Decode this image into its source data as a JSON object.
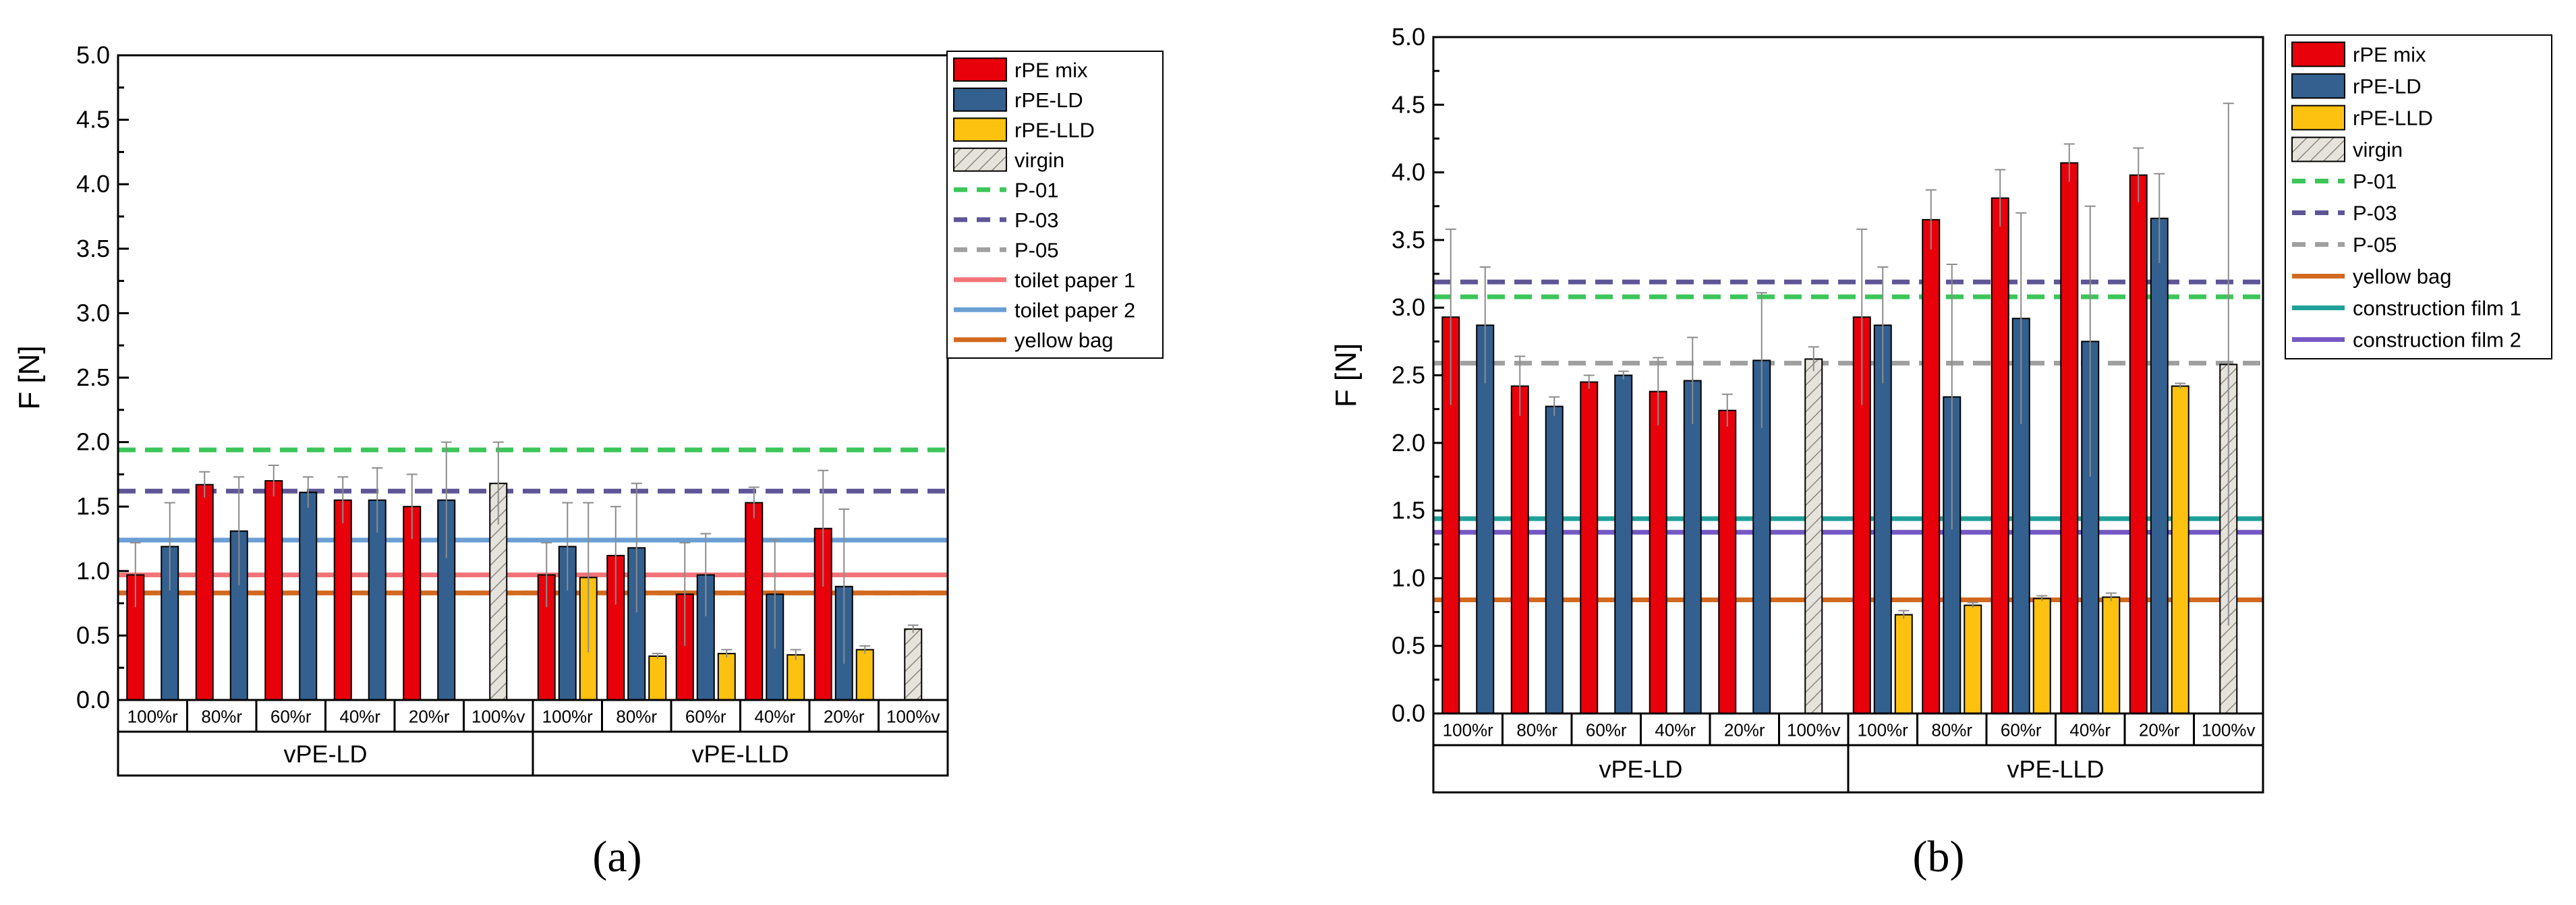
{
  "colors": {
    "rpe_mix": "#e8000b",
    "rpe_ld": "#33608f",
    "rpe_lld": "#fcc20f",
    "virgin": "#e6e2dc",
    "p01": "#3cc65a",
    "p03": "#5d5596",
    "p05": "#a0a0a0",
    "toilet_paper_1": "#f27478",
    "toilet_paper_2": "#6a9fd4",
    "yellow_bag": "#d2691e",
    "construction_film_1": "#1fa19a",
    "construction_film_2": "#7358c4"
  },
  "chart_data": [
    {
      "type": "bar",
      "panel_label": "(a)",
      "ylabel": "F [N]",
      "ylim": [
        0,
        5
      ],
      "yticks": [
        "0.0",
        "0.5",
        "1.0",
        "1.5",
        "2.0",
        "2.5",
        "3.0",
        "3.5",
        "4.0",
        "4.5",
        "5.0"
      ],
      "groups": [
        "vPE-LD",
        "vPE-LLD"
      ],
      "categories": [
        "100%r",
        "80%r",
        "60%r",
        "40%r",
        "20%r",
        "100%v"
      ],
      "series": [
        {
          "name": "rPE mix",
          "color_key": "rpe_mix",
          "values": [
            [
              0.97,
              1.67,
              1.7,
              1.55,
              1.5,
              null
            ],
            [
              0.97,
              1.12,
              0.82,
              1.53,
              1.33,
              null
            ]
          ],
          "errors": [
            [
              0.25,
              0.1,
              0.12,
              0.18,
              0.25,
              null
            ],
            [
              0.25,
              0.38,
              0.4,
              0.12,
              0.45,
              null
            ]
          ]
        },
        {
          "name": "rPE-LD",
          "color_key": "rpe_ld",
          "values": [
            [
              1.19,
              1.31,
              1.61,
              1.55,
              1.55,
              null
            ],
            [
              1.19,
              1.18,
              0.97,
              0.82,
              0.88,
              null
            ]
          ],
          "errors": [
            [
              0.34,
              0.42,
              0.12,
              0.25,
              0.45,
              null
            ],
            [
              0.34,
              0.5,
              0.32,
              0.42,
              0.6,
              null
            ]
          ]
        },
        {
          "name": "rPE-LLD",
          "color_key": "rpe_lld",
          "values": [
            [
              null,
              null,
              null,
              null,
              null,
              null
            ],
            [
              0.95,
              0.34,
              0.36,
              0.35,
              0.39,
              null
            ]
          ],
          "errors": [
            [
              null,
              null,
              null,
              null,
              null,
              null
            ],
            [
              0.58,
              0.02,
              0.03,
              0.04,
              0.03,
              null
            ]
          ]
        },
        {
          "name": "virgin",
          "color_key": "virgin",
          "values": [
            [
              null,
              null,
              null,
              null,
              null,
              1.68
            ],
            [
              null,
              null,
              null,
              null,
              null,
              0.55
            ]
          ],
          "errors": [
            [
              null,
              null,
              null,
              null,
              null,
              0.32
            ],
            [
              null,
              null,
              null,
              null,
              null,
              0.03
            ]
          ]
        }
      ],
      "reference_lines": [
        {
          "name": "P-01",
          "style": "dashed",
          "color_key": "p01",
          "value": 1.94
        },
        {
          "name": "P-03",
          "style": "dashed",
          "color_key": "p03",
          "value": 1.62
        },
        {
          "name": "P-05",
          "style": "dashed",
          "color_key": "p05",
          "value": 0.83
        },
        {
          "name": "toilet paper 1",
          "style": "solid",
          "color_key": "toilet_paper_1",
          "value": 0.97
        },
        {
          "name": "toilet paper 2",
          "style": "solid",
          "color_key": "toilet_paper_2",
          "value": 1.24
        },
        {
          "name": "yellow bag",
          "style": "solid",
          "color_key": "yellow_bag",
          "value": 0.83
        }
      ],
      "legend": [
        "rPE mix",
        "rPE-LD",
        "rPE-LLD",
        "virgin",
        "P-01",
        "P-03",
        "P-05",
        "toilet paper 1",
        "toilet paper 2",
        "yellow bag"
      ],
      "legend_position": "right"
    },
    {
      "type": "bar",
      "panel_label": "(b)",
      "ylabel": "F [N]",
      "ylim": [
        0,
        5
      ],
      "yticks": [
        "0.0",
        "0.5",
        "1.0",
        "1.5",
        "2.0",
        "2.5",
        "3.0",
        "3.5",
        "4.0",
        "4.5",
        "5.0"
      ],
      "groups": [
        "vPE-LD",
        "vPE-LLD"
      ],
      "categories": [
        "100%r",
        "80%r",
        "60%r",
        "40%r",
        "20%r",
        "100%v"
      ],
      "series": [
        {
          "name": "rPE mix",
          "color_key": "rpe_mix",
          "values": [
            [
              2.93,
              2.42,
              2.45,
              2.38,
              2.24,
              null
            ],
            [
              2.93,
              3.65,
              3.81,
              4.07,
              3.98,
              null
            ]
          ],
          "errors": [
            [
              0.65,
              0.22,
              0.05,
              0.25,
              0.12,
              null
            ],
            [
              0.65,
              0.22,
              0.21,
              0.14,
              0.2,
              null
            ]
          ]
        },
        {
          "name": "rPE-LD",
          "color_key": "rpe_ld",
          "values": [
            [
              2.87,
              2.27,
              2.5,
              2.46,
              2.61,
              null
            ],
            [
              2.87,
              2.34,
              2.92,
              2.75,
              3.66,
              null
            ]
          ],
          "errors": [
            [
              0.43,
              0.07,
              0.03,
              0.32,
              0.5,
              null
            ],
            [
              0.43,
              0.98,
              0.78,
              1.0,
              0.33,
              null
            ]
          ]
        },
        {
          "name": "rPE-LLD",
          "color_key": "rpe_lld",
          "values": [
            [
              null,
              null,
              null,
              null,
              null,
              null
            ],
            [
              0.73,
              0.8,
              0.85,
              0.86,
              2.42,
              null
            ]
          ],
          "errors": [
            [
              null,
              null,
              null,
              null,
              null,
              null
            ],
            [
              0.03,
              0.02,
              0.02,
              0.03,
              0.02,
              null
            ]
          ]
        },
        {
          "name": "virgin",
          "color_key": "virgin",
          "values": [
            [
              null,
              null,
              null,
              null,
              null,
              2.62
            ],
            [
              null,
              null,
              null,
              null,
              null,
              2.58
            ]
          ],
          "errors": [
            [
              null,
              null,
              null,
              null,
              null,
              0.09
            ],
            [
              null,
              null,
              null,
              null,
              null,
              1.93
            ]
          ]
        }
      ],
      "reference_lines": [
        {
          "name": "P-01",
          "style": "dashed",
          "color_key": "p01",
          "value": 3.08
        },
        {
          "name": "P-03",
          "style": "dashed",
          "color_key": "p03",
          "value": 3.19
        },
        {
          "name": "P-05",
          "style": "dashed",
          "color_key": "p05",
          "value": 2.59
        },
        {
          "name": "yellow bag",
          "style": "solid",
          "color_key": "yellow_bag",
          "value": 0.84
        },
        {
          "name": "construction film 1",
          "style": "solid",
          "color_key": "construction_film_1",
          "value": 1.44
        },
        {
          "name": "construction film 2",
          "style": "solid",
          "color_key": "construction_film_2",
          "value": 1.34
        }
      ],
      "legend": [
        "rPE mix",
        "rPE-LD",
        "rPE-LLD",
        "virgin",
        "P-01",
        "P-03",
        "P-05",
        "yellow bag",
        "construction film 1",
        "construction film 2"
      ],
      "legend_position": "right"
    }
  ]
}
